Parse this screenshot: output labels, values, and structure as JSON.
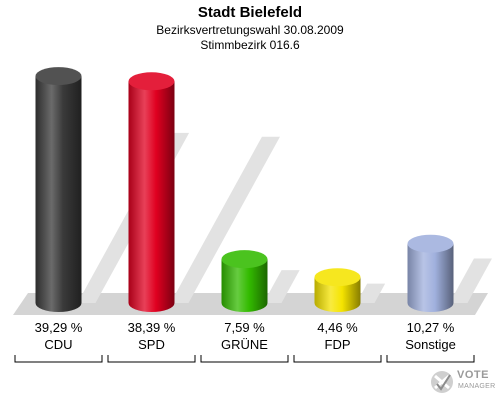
{
  "chart_data": {
    "type": "bar",
    "title": "Stadt Bielefeld",
    "subtitle_line1": "Bezirksvertretungswahl 30.08.2009",
    "subtitle_line2": "Stimmbezirk 016.6",
    "categories": [
      "CDU",
      "SPD",
      "GRÜNE",
      "FDP",
      "Sonstige"
    ],
    "values": [
      39.29,
      38.39,
      7.59,
      4.46,
      10.27
    ],
    "value_labels": [
      "39,29 %",
      "38,39 %",
      "7,59 %",
      "4,46 %",
      "10,27 %"
    ],
    "colors": [
      "#3a3a3a",
      "#e00020",
      "#33bb00",
      "#f5e400",
      "#a0b0dd"
    ],
    "ylim": [
      0,
      40
    ],
    "xlabel": "",
    "ylabel": "",
    "grid": false,
    "legend": "none"
  },
  "branding": {
    "logo_line1": "VOTE",
    "logo_line2": "MANAGER"
  }
}
